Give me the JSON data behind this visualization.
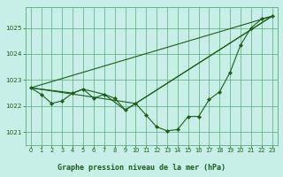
{
  "title": "Graphe pression niveau de la mer (hPa)",
  "background_color": "#c8eee8",
  "grid_color": "#5aaa7a",
  "line_color": "#1a5e1a",
  "xlim": [
    -0.5,
    23.5
  ],
  "ylim": [
    1020.5,
    1025.8
  ],
  "xticks": [
    0,
    1,
    2,
    3,
    4,
    5,
    6,
    7,
    8,
    9,
    10,
    11,
    12,
    13,
    14,
    15,
    16,
    17,
    18,
    19,
    20,
    21,
    22,
    23
  ],
  "yticks": [
    1021,
    1022,
    1023,
    1024,
    1025
  ],
  "series0": {
    "x": [
      0,
      1,
      2,
      3,
      4,
      5,
      6,
      7,
      8,
      9,
      10,
      11,
      12,
      13,
      14,
      15,
      16,
      17,
      18,
      19,
      20,
      21,
      22,
      23
    ],
    "y": [
      1022.7,
      1022.45,
      1022.1,
      1022.2,
      1022.5,
      1022.65,
      1022.3,
      1022.45,
      1022.3,
      1021.85,
      1022.1,
      1021.65,
      1021.2,
      1021.05,
      1021.1,
      1021.6,
      1021.6,
      1022.25,
      1022.55,
      1023.3,
      1024.35,
      1025.0,
      1025.35,
      1025.45
    ]
  },
  "series1": {
    "x": [
      0,
      4,
      5,
      7,
      9,
      10,
      23
    ],
    "y": [
      1022.7,
      1022.5,
      1022.65,
      1022.45,
      1021.85,
      1022.1,
      1025.45
    ]
  },
  "series2": {
    "x": [
      0,
      23
    ],
    "y": [
      1022.7,
      1025.45
    ]
  },
  "series3": {
    "x": [
      0,
      10,
      23
    ],
    "y": [
      1022.7,
      1022.1,
      1025.45
    ]
  }
}
